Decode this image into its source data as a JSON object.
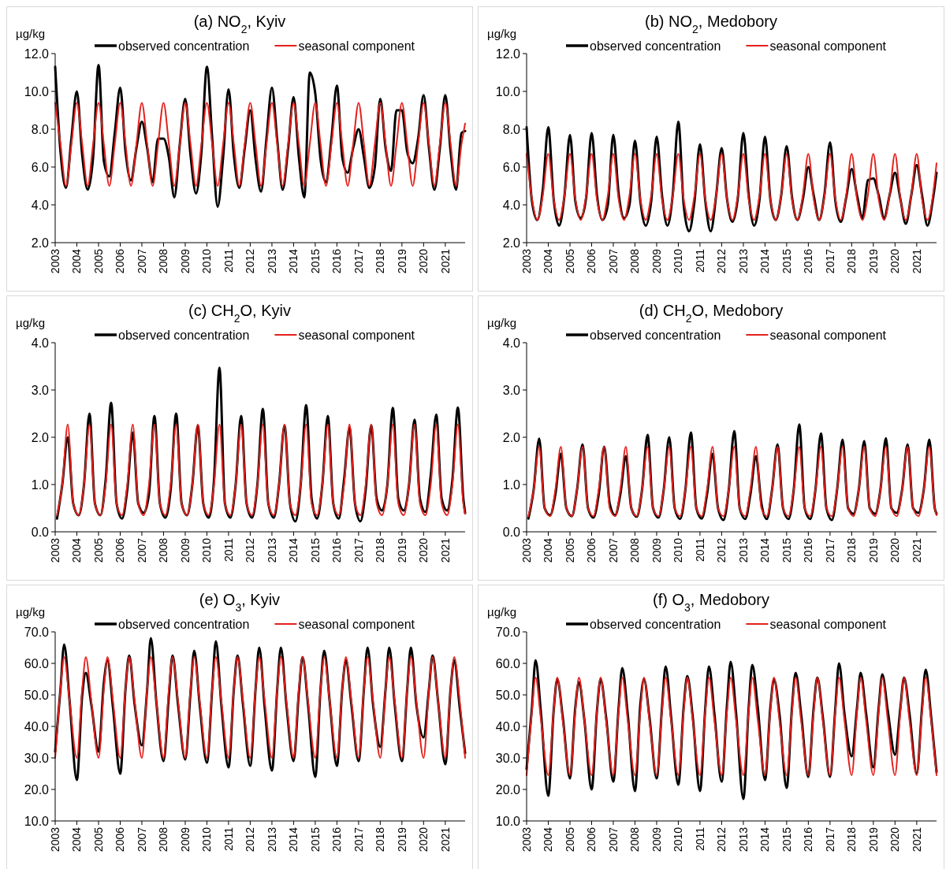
{
  "chart_data": [
    {
      "type": "line",
      "title": "(a) NO$_{2}$, Kyiv",
      "ylabel": "µg/kg",
      "legend": "top",
      "grid": false,
      "x": [
        "2003-01",
        "2003-04",
        "2003-07",
        "2003-10",
        "2004-01",
        "2004-04",
        "2004-07",
        "2004-10",
        "2005-01",
        "2005-04",
        "2005-07",
        "2005-10",
        "2006-01",
        "2006-04",
        "2006-07",
        "2006-10",
        "2007-01",
        "2007-04",
        "2007-07",
        "2007-10",
        "2008-01",
        "2008-04",
        "2008-07",
        "2008-10",
        "2009-01",
        "2009-04",
        "2009-07",
        "2009-10",
        "2010-01",
        "2010-04",
        "2010-07",
        "2010-10",
        "2011-01",
        "2011-04",
        "2011-07",
        "2011-10",
        "2012-01",
        "2012-04",
        "2012-07",
        "2012-10",
        "2013-01",
        "2013-04",
        "2013-07",
        "2013-10",
        "2014-01",
        "2014-04",
        "2014-07",
        "2014-10",
        "2015-01",
        "2015-04",
        "2015-07",
        "2015-10",
        "2016-01",
        "2016-04",
        "2016-07",
        "2016-10",
        "2017-01",
        "2017-04",
        "2017-07",
        "2017-10",
        "2018-01",
        "2018-04",
        "2018-07",
        "2018-10",
        "2019-01",
        "2019-04",
        "2019-07",
        "2019-10",
        "2020-01",
        "2020-04",
        "2020-07",
        "2020-10",
        "2021-01",
        "2021-04",
        "2021-07",
        "2021-10",
        "2021-12"
      ],
      "xlim": [
        "2003-01",
        "2021-12"
      ],
      "xticks": [
        "2003",
        "2004",
        "2005",
        "2006",
        "2007",
        "2008",
        "2009",
        "2010",
        "2011",
        "2012",
        "2013",
        "2014",
        "2015",
        "2016",
        "2017",
        "2018",
        "2019",
        "2020",
        "2021"
      ],
      "ylim": [
        2,
        12
      ],
      "yticks": [
        {
          "value": 2,
          "label": "2.0"
        },
        {
          "value": 4,
          "label": "4.0"
        },
        {
          "value": 6,
          "label": "6.0"
        },
        {
          "value": 8,
          "label": "8.0"
        },
        {
          "value": 10,
          "label": "10.0"
        },
        {
          "value": 12,
          "label": "12.0"
        }
      ],
      "series": [
        {
          "name": "observed concentration",
          "color": "#000000",
          "values": [
            11.3,
            6.8,
            4.9,
            7.5,
            10.0,
            6.6,
            4.8,
            6.5,
            11.4,
            6.3,
            5.5,
            7.8,
            10.2,
            6.8,
            5.3,
            7.0,
            8.4,
            7.0,
            5.2,
            7.5,
            7.5,
            6.5,
            4.4,
            7.2,
            9.6,
            6.6,
            4.6,
            6.8,
            11.3,
            7.5,
            3.9,
            6.5,
            10.1,
            6.6,
            4.9,
            7.0,
            9.0,
            6.4,
            4.7,
            7.5,
            10.2,
            7.4,
            4.8,
            7.0,
            9.7,
            6.5,
            4.4,
            11.0,
            9.9,
            6.4,
            5.2,
            7.5,
            10.3,
            6.5,
            5.7,
            7.0,
            8.0,
            6.5,
            4.9,
            6.0,
            9.6,
            7.0,
            5.8,
            9.0,
            9.0,
            6.8,
            6.2,
            7.5,
            9.8,
            7.0,
            4.8,
            7.0,
            9.8,
            6.8,
            4.8,
            7.8,
            7.9
          ]
        },
        {
          "name": "seasonal component",
          "color": "#e3211c",
          "values": [
            9.4,
            7.2,
            5.0,
            7.2,
            9.4,
            7.2,
            5.0,
            7.2,
            9.4,
            7.2,
            5.0,
            7.2,
            9.4,
            7.2,
            5.0,
            7.2,
            9.4,
            7.2,
            5.0,
            7.2,
            9.4,
            7.2,
            5.0,
            7.2,
            9.4,
            7.2,
            5.0,
            7.2,
            9.4,
            7.2,
            5.0,
            7.2,
            9.4,
            7.2,
            5.0,
            7.2,
            9.4,
            7.2,
            5.0,
            7.2,
            9.4,
            7.2,
            5.0,
            7.2,
            9.4,
            7.2,
            5.0,
            7.2,
            9.4,
            7.2,
            5.0,
            7.2,
            9.4,
            7.2,
            5.0,
            7.2,
            9.4,
            7.2,
            5.0,
            7.2,
            9.4,
            7.2,
            5.0,
            7.2,
            9.4,
            7.2,
            5.0,
            7.2,
            9.4,
            7.2,
            5.0,
            7.2,
            9.4,
            7.2,
            5.0,
            7.2,
            8.3
          ]
        }
      ]
    },
    {
      "type": "line",
      "title": "(b) NO$_{2}$, Medobory",
      "ylabel": "µg/kg",
      "legend": "top",
      "grid": false,
      "x": [
        "2003-01",
        "2003-04",
        "2003-07",
        "2003-10",
        "2004-01",
        "2004-04",
        "2004-07",
        "2004-10",
        "2005-01",
        "2005-04",
        "2005-07",
        "2005-10",
        "2006-01",
        "2006-04",
        "2006-07",
        "2006-10",
        "2007-01",
        "2007-04",
        "2007-07",
        "2007-10",
        "2008-01",
        "2008-04",
        "2008-07",
        "2008-10",
        "2009-01",
        "2009-04",
        "2009-07",
        "2009-10",
        "2010-01",
        "2010-04",
        "2010-07",
        "2010-10",
        "2011-01",
        "2011-04",
        "2011-07",
        "2011-10",
        "2012-01",
        "2012-04",
        "2012-07",
        "2012-10",
        "2013-01",
        "2013-04",
        "2013-07",
        "2013-10",
        "2014-01",
        "2014-04",
        "2014-07",
        "2014-10",
        "2015-01",
        "2015-04",
        "2015-07",
        "2015-10",
        "2016-01",
        "2016-04",
        "2016-07",
        "2016-10",
        "2017-01",
        "2017-04",
        "2017-07",
        "2017-10",
        "2018-01",
        "2018-04",
        "2018-07",
        "2018-10",
        "2019-01",
        "2019-04",
        "2019-07",
        "2019-10",
        "2020-01",
        "2020-04",
        "2020-07",
        "2020-10",
        "2021-01",
        "2021-04",
        "2021-07",
        "2021-10",
        "2021-12"
      ],
      "xlim": [
        "2003-01",
        "2021-12"
      ],
      "xticks": [
        "2003",
        "2004",
        "2005",
        "2006",
        "2007",
        "2008",
        "2009",
        "2010",
        "2011",
        "2012",
        "2013",
        "2014",
        "2015",
        "2016",
        "2017",
        "2018",
        "2019",
        "2020",
        "2021"
      ],
      "ylim": [
        2,
        12
      ],
      "yticks": [
        {
          "value": 2,
          "label": "2.0"
        },
        {
          "value": 4,
          "label": "4.0"
        },
        {
          "value": 6,
          "label": "6.0"
        },
        {
          "value": 8,
          "label": "8.0"
        },
        {
          "value": 10,
          "label": "10.0"
        },
        {
          "value": 12,
          "label": "12.0"
        }
      ],
      "series": [
        {
          "name": "observed concentration",
          "color": "#000000",
          "values": [
            8.1,
            4.2,
            3.2,
            4.8,
            8.1,
            4.3,
            2.9,
            4.5,
            7.7,
            4.2,
            3.3,
            4.4,
            7.8,
            4.5,
            3.2,
            4.0,
            7.7,
            4.6,
            3.3,
            4.0,
            7.4,
            4.2,
            2.9,
            4.2,
            7.6,
            4.5,
            2.9,
            4.6,
            8.4,
            4.0,
            2.6,
            4.2,
            7.2,
            4.2,
            2.6,
            4.5,
            7.0,
            4.3,
            3.1,
            4.4,
            7.8,
            4.5,
            2.9,
            4.3,
            7.6,
            4.3,
            3.2,
            4.5,
            7.1,
            4.4,
            3.2,
            4.3,
            6.0,
            4.5,
            3.2,
            4.6,
            7.3,
            4.2,
            3.1,
            4.4,
            5.9,
            4.5,
            3.3,
            5.3,
            5.4,
            4.5,
            3.3,
            4.5,
            5.7,
            4.3,
            3.0,
            4.5,
            6.1,
            4.5,
            2.9,
            4.3,
            5.7
          ]
        },
        {
          "name": "seasonal component",
          "color": "#e3211c",
          "values": [
            6.7,
            4.3,
            3.2,
            4.5,
            6.7,
            4.3,
            3.2,
            4.5,
            6.7,
            4.3,
            3.2,
            4.5,
            6.7,
            4.3,
            3.2,
            4.5,
            6.7,
            4.3,
            3.2,
            4.5,
            6.7,
            4.3,
            3.2,
            4.5,
            6.7,
            4.3,
            3.2,
            4.5,
            6.7,
            4.3,
            3.2,
            4.5,
            6.7,
            4.3,
            3.2,
            4.5,
            6.7,
            4.3,
            3.2,
            4.5,
            6.7,
            4.3,
            3.2,
            4.5,
            6.7,
            4.3,
            3.2,
            4.5,
            6.7,
            4.3,
            3.2,
            4.5,
            6.7,
            4.3,
            3.2,
            4.5,
            6.7,
            4.3,
            3.2,
            4.5,
            6.7,
            4.3,
            3.2,
            4.5,
            6.7,
            4.3,
            3.2,
            4.5,
            6.7,
            4.3,
            3.2,
            4.5,
            6.7,
            4.3,
            3.2,
            4.5,
            6.2
          ]
        }
      ]
    },
    {
      "type": "line",
      "title": "(c) CH$_{2}$O, Kyiv",
      "ylabel": "µg/kg",
      "legend": "top",
      "grid": false,
      "x": [
        "2003-02",
        "2003-05",
        "2003-08",
        "2003-11",
        "2004-02",
        "2004-05",
        "2004-08",
        "2004-11",
        "2005-02",
        "2005-05",
        "2005-08",
        "2005-11",
        "2006-02",
        "2006-05",
        "2006-08",
        "2006-11",
        "2007-02",
        "2007-05",
        "2007-08",
        "2007-11",
        "2008-02",
        "2008-05",
        "2008-08",
        "2008-11",
        "2009-02",
        "2009-05",
        "2009-08",
        "2009-11",
        "2010-02",
        "2010-05",
        "2010-08",
        "2010-11",
        "2011-02",
        "2011-05",
        "2011-08",
        "2011-11",
        "2012-02",
        "2012-05",
        "2012-08",
        "2012-11",
        "2013-02",
        "2013-05",
        "2013-08",
        "2013-11",
        "2014-02",
        "2014-05",
        "2014-08",
        "2014-11",
        "2015-02",
        "2015-05",
        "2015-08",
        "2015-11",
        "2016-02",
        "2016-05",
        "2016-08",
        "2016-11",
        "2017-02",
        "2017-05",
        "2017-08",
        "2017-11",
        "2018-02",
        "2018-05",
        "2018-08",
        "2018-11",
        "2019-02",
        "2019-05",
        "2019-08",
        "2019-11",
        "2020-02",
        "2020-05",
        "2020-08",
        "2020-11",
        "2021-02",
        "2021-05",
        "2021-08",
        "2021-11",
        "2021-12"
      ],
      "xlim": [
        "2003-01",
        "2021-12"
      ],
      "xticks": [
        "2003",
        "2004",
        "2005",
        "2006",
        "2007",
        "2008",
        "2009",
        "2010",
        "2011",
        "2012",
        "2013",
        "2014",
        "2015",
        "2016",
        "2017",
        "2018",
        "2019",
        "2020",
        "2021"
      ],
      "ylim": [
        0,
        4
      ],
      "yticks": [
        {
          "value": 0,
          "label": "0.0"
        },
        {
          "value": 1,
          "label": "1.0"
        },
        {
          "value": 2,
          "label": "2.0"
        },
        {
          "value": 3,
          "label": "3.0"
        },
        {
          "value": 4,
          "label": "4.0"
        }
      ],
      "series": [
        {
          "name": "observed concentration",
          "color": "#000000",
          "values": [
            0.28,
            1.0,
            2.0,
            0.6,
            0.35,
            1.0,
            2.5,
            0.6,
            0.35,
            1.1,
            2.73,
            0.6,
            0.28,
            0.9,
            2.1,
            0.6,
            0.4,
            0.8,
            2.45,
            0.6,
            0.3,
            0.9,
            2.5,
            0.6,
            0.35,
            1.0,
            2.25,
            0.6,
            0.3,
            1.1,
            3.47,
            0.6,
            0.3,
            1.0,
            2.45,
            0.6,
            0.3,
            1.0,
            2.6,
            0.6,
            0.3,
            1.0,
            2.25,
            0.6,
            0.22,
            1.0,
            2.68,
            0.7,
            0.28,
            1.0,
            2.45,
            0.6,
            0.28,
            1.1,
            2.2,
            0.6,
            0.22,
            0.9,
            2.25,
            0.7,
            0.45,
            1.0,
            2.62,
            0.7,
            0.45,
            1.0,
            2.37,
            0.7,
            0.42,
            1.2,
            2.48,
            0.7,
            0.45,
            1.1,
            2.63,
            0.7,
            0.4
          ]
        },
        {
          "name": "seasonal component",
          "color": "#e3211c",
          "values": [
            0.35,
            1.0,
            2.27,
            0.6,
            0.35,
            1.0,
            2.27,
            0.6,
            0.35,
            1.0,
            2.27,
            0.6,
            0.35,
            1.0,
            2.27,
            0.6,
            0.35,
            1.0,
            2.27,
            0.6,
            0.35,
            1.0,
            2.27,
            0.6,
            0.35,
            1.0,
            2.27,
            0.6,
            0.35,
            1.0,
            2.27,
            0.6,
            0.35,
            1.0,
            2.27,
            0.6,
            0.35,
            1.0,
            2.27,
            0.6,
            0.35,
            1.0,
            2.27,
            0.6,
            0.35,
            1.0,
            2.27,
            0.6,
            0.35,
            1.0,
            2.27,
            0.6,
            0.35,
            1.0,
            2.27,
            0.6,
            0.35,
            1.0,
            2.27,
            0.6,
            0.35,
            1.0,
            2.27,
            0.6,
            0.35,
            1.0,
            2.27,
            0.6,
            0.35,
            1.0,
            2.27,
            0.6,
            0.35,
            1.0,
            2.27,
            0.6,
            0.38
          ]
        }
      ]
    },
    {
      "type": "line",
      "title": "(d) CH$_{2}$O, Medobory",
      "ylabel": "µg/kg",
      "legend": "top",
      "grid": false,
      "x": [
        "2003-02",
        "2003-05",
        "2003-08",
        "2003-11",
        "2004-02",
        "2004-05",
        "2004-08",
        "2004-11",
        "2005-02",
        "2005-05",
        "2005-08",
        "2005-11",
        "2006-02",
        "2006-05",
        "2006-08",
        "2006-11",
        "2007-02",
        "2007-05",
        "2007-08",
        "2007-11",
        "2008-02",
        "2008-05",
        "2008-08",
        "2008-11",
        "2009-02",
        "2009-05",
        "2009-08",
        "2009-11",
        "2010-02",
        "2010-05",
        "2010-08",
        "2010-11",
        "2011-02",
        "2011-05",
        "2011-08",
        "2011-11",
        "2012-02",
        "2012-05",
        "2012-08",
        "2012-11",
        "2013-02",
        "2013-05",
        "2013-08",
        "2013-11",
        "2014-02",
        "2014-05",
        "2014-08",
        "2014-11",
        "2015-02",
        "2015-05",
        "2015-08",
        "2015-11",
        "2016-02",
        "2016-05",
        "2016-08",
        "2016-11",
        "2017-02",
        "2017-05",
        "2017-08",
        "2017-11",
        "2018-02",
        "2018-05",
        "2018-08",
        "2018-11",
        "2019-02",
        "2019-05",
        "2019-08",
        "2019-11",
        "2020-02",
        "2020-05",
        "2020-08",
        "2020-11",
        "2021-02",
        "2021-05",
        "2021-08",
        "2021-11",
        "2021-12"
      ],
      "xlim": [
        "2003-01",
        "2021-12"
      ],
      "xticks": [
        "2003",
        "2004",
        "2005",
        "2006",
        "2007",
        "2008",
        "2009",
        "2010",
        "2011",
        "2012",
        "2013",
        "2014",
        "2015",
        "2016",
        "2017",
        "2018",
        "2019",
        "2020",
        "2021"
      ],
      "ylim": [
        0,
        4
      ],
      "yticks": [
        {
          "value": 0,
          "label": "0.0"
        },
        {
          "value": 1,
          "label": "1.0"
        },
        {
          "value": 2,
          "label": "2.0"
        },
        {
          "value": 3,
          "label": "3.0"
        },
        {
          "value": 4,
          "label": "4.0"
        }
      ],
      "series": [
        {
          "name": "observed concentration",
          "color": "#000000",
          "values": [
            0.28,
            0.9,
            1.97,
            0.5,
            0.35,
            0.8,
            1.65,
            0.5,
            0.33,
            0.9,
            1.85,
            0.5,
            0.3,
            0.8,
            1.8,
            0.6,
            0.35,
            0.8,
            1.6,
            0.5,
            0.32,
            0.9,
            2.05,
            0.5,
            0.3,
            0.9,
            2.0,
            0.5,
            0.27,
            0.9,
            2.1,
            0.5,
            0.28,
            0.8,
            1.65,
            0.5,
            0.25,
            0.9,
            2.13,
            0.5,
            0.27,
            0.8,
            1.6,
            0.6,
            0.27,
            0.9,
            1.85,
            0.5,
            0.27,
            0.9,
            2.27,
            0.5,
            0.27,
            0.9,
            2.08,
            0.5,
            0.25,
            0.9,
            1.95,
            0.5,
            0.38,
            0.9,
            1.92,
            0.5,
            0.38,
            0.9,
            1.98,
            0.5,
            0.4,
            0.9,
            1.85,
            0.5,
            0.4,
            0.9,
            1.95,
            0.5,
            0.38
          ]
        },
        {
          "name": "seasonal component",
          "color": "#e3211c",
          "values": [
            0.33,
            0.9,
            1.8,
            0.5,
            0.33,
            0.9,
            1.8,
            0.5,
            0.33,
            0.9,
            1.8,
            0.5,
            0.33,
            0.9,
            1.8,
            0.5,
            0.33,
            0.9,
            1.8,
            0.5,
            0.33,
            0.9,
            1.8,
            0.5,
            0.33,
            0.9,
            1.8,
            0.5,
            0.33,
            0.9,
            1.8,
            0.5,
            0.33,
            0.9,
            1.8,
            0.5,
            0.33,
            0.9,
            1.8,
            0.5,
            0.33,
            0.9,
            1.8,
            0.5,
            0.33,
            0.9,
            1.8,
            0.5,
            0.33,
            0.9,
            1.8,
            0.5,
            0.33,
            0.9,
            1.8,
            0.5,
            0.33,
            0.9,
            1.8,
            0.5,
            0.33,
            0.9,
            1.8,
            0.5,
            0.33,
            0.9,
            1.8,
            0.5,
            0.33,
            0.9,
            1.8,
            0.5,
            0.33,
            0.9,
            1.8,
            0.5,
            0.35
          ]
        }
      ]
    },
    {
      "type": "line",
      "title": "(e) O$_{3}$, Kyiv",
      "ylabel": "µg/kg",
      "legend": "top",
      "grid": false,
      "x": [
        "2003-01",
        "2003-04",
        "2003-06",
        "2003-09",
        "2004-01",
        "2004-04",
        "2004-06",
        "2004-09",
        "2005-01",
        "2005-04",
        "2005-06",
        "2005-09",
        "2006-01",
        "2006-04",
        "2006-06",
        "2006-09",
        "2007-01",
        "2007-04",
        "2007-06",
        "2007-09",
        "2008-01",
        "2008-04",
        "2008-06",
        "2008-09",
        "2009-01",
        "2009-04",
        "2009-06",
        "2009-09",
        "2010-01",
        "2010-04",
        "2010-06",
        "2010-09",
        "2011-01",
        "2011-04",
        "2011-06",
        "2011-09",
        "2012-01",
        "2012-04",
        "2012-06",
        "2012-09",
        "2013-01",
        "2013-04",
        "2013-06",
        "2013-09",
        "2014-01",
        "2014-04",
        "2014-06",
        "2014-09",
        "2015-01",
        "2015-04",
        "2015-06",
        "2015-09",
        "2016-01",
        "2016-04",
        "2016-06",
        "2016-09",
        "2017-01",
        "2017-04",
        "2017-06",
        "2017-09",
        "2018-01",
        "2018-04",
        "2018-06",
        "2018-09",
        "2019-01",
        "2019-04",
        "2019-06",
        "2019-09",
        "2020-01",
        "2020-04",
        "2020-06",
        "2020-09",
        "2021-01",
        "2021-04",
        "2021-06",
        "2021-09",
        "2021-12"
      ],
      "xlim": [
        "2003-01",
        "2021-12"
      ],
      "xticks": [
        "2003",
        "2004",
        "2005",
        "2006",
        "2007",
        "2008",
        "2009",
        "2010",
        "2011",
        "2012",
        "2013",
        "2014",
        "2015",
        "2016",
        "2017",
        "2018",
        "2019",
        "2020",
        "2021"
      ],
      "ylim": [
        10,
        70
      ],
      "yticks": [
        {
          "value": 10,
          "label": "10.0"
        },
        {
          "value": 20,
          "label": "20.0"
        },
        {
          "value": 30,
          "label": "30.0"
        },
        {
          "value": 40,
          "label": "40.0"
        },
        {
          "value": 50,
          "label": "50.0"
        },
        {
          "value": 60,
          "label": "60.0"
        },
        {
          "value": 70,
          "label": "70.0"
        }
      ],
      "series": [
        {
          "name": "observed concentration",
          "color": "#000000",
          "values": [
            32,
            52,
            66,
            48,
            23,
            50,
            57,
            47,
            32,
            54,
            61,
            46,
            25,
            52,
            62.5,
            47,
            34,
            52,
            68,
            48,
            29,
            50,
            62.5,
            47,
            29.5,
            51,
            64,
            47,
            28.5,
            52,
            67,
            47,
            27,
            52,
            62.5,
            47,
            27.5,
            52,
            65,
            46,
            26,
            52,
            65,
            47,
            29,
            51,
            62,
            47,
            24,
            52,
            64,
            48,
            27.5,
            52,
            61,
            47,
            29,
            52,
            65,
            47,
            33.5,
            52,
            65,
            47,
            29,
            52,
            65,
            47,
            36.5,
            52,
            62.5,
            48,
            28,
            52,
            61,
            46,
            31.5
          ]
        },
        {
          "name": "seasonal component",
          "color": "#e3211c",
          "values": [
            30,
            52,
            62,
            48,
            30,
            52,
            62,
            48,
            30,
            52,
            62,
            48,
            30,
            52,
            62,
            48,
            30,
            52,
            62,
            48,
            30,
            52,
            62,
            48,
            30,
            52,
            62,
            48,
            30,
            52,
            62,
            48,
            30,
            52,
            62,
            48,
            30,
            52,
            62,
            48,
            30,
            52,
            62,
            48,
            30,
            52,
            62,
            48,
            30,
            52,
            62,
            48,
            30,
            52,
            62,
            48,
            30,
            52,
            62,
            48,
            30,
            52,
            62,
            48,
            30,
            52,
            62,
            48,
            30,
            52,
            62,
            48,
            30,
            52,
            62,
            48,
            30
          ]
        }
      ]
    },
    {
      "type": "line",
      "title": "(f) O$_{3}$, Medobory",
      "ylabel": "µg/kg",
      "legend": "top",
      "grid": false,
      "x": [
        "2003-01",
        "2003-04",
        "2003-06",
        "2003-09",
        "2004-01",
        "2004-04",
        "2004-06",
        "2004-09",
        "2005-01",
        "2005-04",
        "2005-06",
        "2005-09",
        "2006-01",
        "2006-04",
        "2006-06",
        "2006-09",
        "2007-01",
        "2007-04",
        "2007-06",
        "2007-09",
        "2008-01",
        "2008-04",
        "2008-06",
        "2008-09",
        "2009-01",
        "2009-04",
        "2009-06",
        "2009-09",
        "2010-01",
        "2010-04",
        "2010-06",
        "2010-09",
        "2011-01",
        "2011-04",
        "2011-06",
        "2011-09",
        "2012-01",
        "2012-04",
        "2012-06",
        "2012-09",
        "2013-01",
        "2013-04",
        "2013-06",
        "2013-09",
        "2014-01",
        "2014-04",
        "2014-06",
        "2014-09",
        "2015-01",
        "2015-04",
        "2015-06",
        "2015-09",
        "2016-01",
        "2016-04",
        "2016-06",
        "2016-09",
        "2017-01",
        "2017-04",
        "2017-06",
        "2017-09",
        "2018-01",
        "2018-04",
        "2018-06",
        "2018-09",
        "2019-01",
        "2019-04",
        "2019-06",
        "2019-09",
        "2020-01",
        "2020-04",
        "2020-06",
        "2020-09",
        "2021-01",
        "2021-04",
        "2021-06",
        "2021-09",
        "2021-12"
      ],
      "xlim": [
        "2003-01",
        "2021-12"
      ],
      "xticks": [
        "2003",
        "2004",
        "2005",
        "2006",
        "2007",
        "2008",
        "2009",
        "2010",
        "2011",
        "2012",
        "2013",
        "2014",
        "2015",
        "2016",
        "2017",
        "2018",
        "2019",
        "2020",
        "2021"
      ],
      "ylim": [
        10,
        70
      ],
      "yticks": [
        {
          "value": 10,
          "label": "10.0"
        },
        {
          "value": 20,
          "label": "20.0"
        },
        {
          "value": 30,
          "label": "30.0"
        },
        {
          "value": 40,
          "label": "40.0"
        },
        {
          "value": 50,
          "label": "50.0"
        },
        {
          "value": 60,
          "label": "60.0"
        },
        {
          "value": 70,
          "label": "70.0"
        }
      ],
      "series": [
        {
          "name": "observed concentration",
          "color": "#000000",
          "values": [
            26.5,
            46,
            61,
            44,
            18,
            45,
            55,
            43,
            23.5,
            46,
            54,
            42,
            20,
            45,
            55,
            43,
            22.5,
            46,
            58.5,
            44,
            19.5,
            47,
            55,
            43,
            23.5,
            46,
            59,
            43,
            21.5,
            46,
            56,
            43,
            19.5,
            46,
            59,
            44,
            22.5,
            47,
            60.5,
            44,
            17,
            46,
            59.5,
            46,
            23,
            46,
            55,
            44,
            20.5,
            46,
            57,
            44,
            24,
            46,
            55.5,
            43,
            24,
            46,
            60,
            44,
            30.5,
            46,
            57,
            44,
            27,
            46,
            56.5,
            45,
            31,
            46,
            55.5,
            44,
            25,
            46,
            58,
            43,
            25.5
          ]
        },
        {
          "name": "seasonal component",
          "color": "#e3211c",
          "values": [
            24.5,
            45,
            55.5,
            42,
            24.5,
            45,
            55.5,
            42,
            24.5,
            45,
            55.5,
            42,
            24.5,
            45,
            55.5,
            42,
            24.5,
            45,
            55.5,
            42,
            24.5,
            45,
            55.5,
            42,
            24.5,
            45,
            55.5,
            42,
            24.5,
            45,
            55.5,
            42,
            24.5,
            45,
            55.5,
            42,
            24.5,
            45,
            55.5,
            42,
            24.5,
            45,
            55.5,
            42,
            24.5,
            45,
            55.5,
            42,
            24.5,
            45,
            55.5,
            42,
            24.5,
            45,
            55.5,
            42,
            24.5,
            45,
            55.5,
            42,
            24.5,
            45,
            55.5,
            42,
            24.5,
            45,
            55.5,
            42,
            24.5,
            45,
            55.5,
            42,
            24.5,
            45,
            55.5,
            42,
            24.5
          ]
        }
      ]
    }
  ]
}
